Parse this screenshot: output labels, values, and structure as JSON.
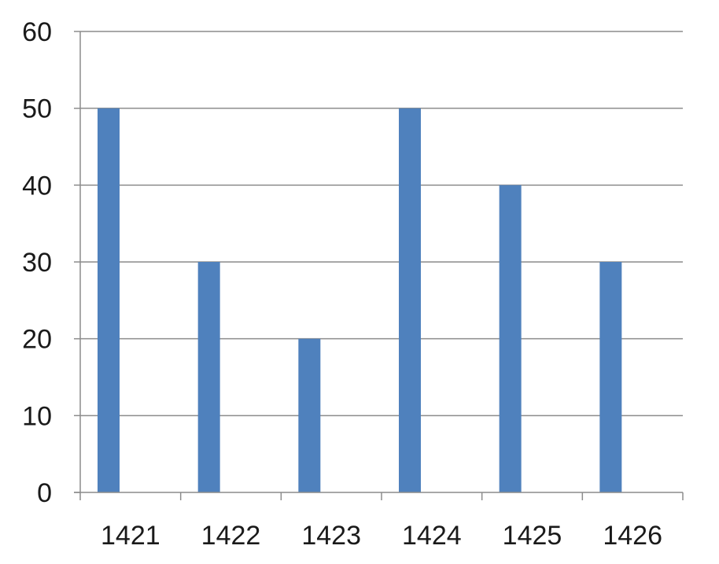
{
  "chart_data": {
    "type": "bar",
    "categories": [
      "1421",
      "1422",
      "1423",
      "1424",
      "1425",
      "1426"
    ],
    "values": [
      50,
      30,
      20,
      50,
      40,
      30
    ],
    "title": "",
    "xlabel": "",
    "ylabel": "",
    "ylim": [
      0,
      60
    ],
    "yticks": [
      0,
      10,
      20,
      30,
      40,
      50,
      60
    ],
    "grid": true,
    "legend": "none",
    "bar_color": "#4f81bd"
  }
}
